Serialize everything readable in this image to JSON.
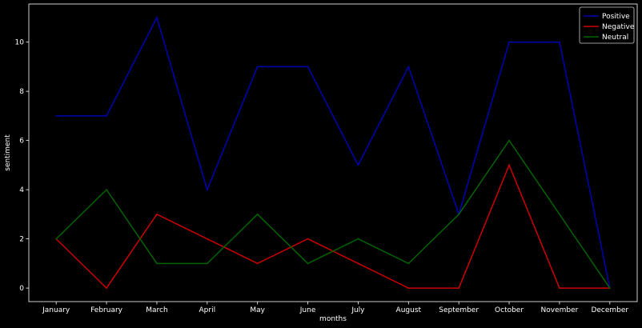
{
  "chart_data": {
    "type": "line",
    "title": "",
    "xlabel": "months",
    "ylabel": "sentiment",
    "categories": [
      "January",
      "February",
      "March",
      "April",
      "May",
      "June",
      "July",
      "August",
      "September",
      "October",
      "November",
      "December"
    ],
    "ylim": [
      -0.55,
      11.55
    ],
    "yticks": [
      0,
      2,
      4,
      6,
      8,
      10
    ],
    "grid": false,
    "legend_position": "top-right",
    "background": "#000000",
    "axis_color": "#ffffff",
    "series": [
      {
        "name": "Positive",
        "color": "#0000b3",
        "values": [
          7,
          7,
          11,
          4,
          9,
          9,
          5,
          9,
          3,
          10,
          10,
          0
        ]
      },
      {
        "name": "Negative",
        "color": "#cc0000",
        "values": [
          2,
          0,
          3,
          2,
          1,
          2,
          1,
          0,
          0,
          5,
          0,
          0
        ]
      },
      {
        "name": "Neutral",
        "color": "#006400",
        "values": [
          2,
          4,
          1,
          1,
          3,
          1,
          2,
          1,
          3,
          6,
          3,
          0
        ]
      }
    ]
  }
}
